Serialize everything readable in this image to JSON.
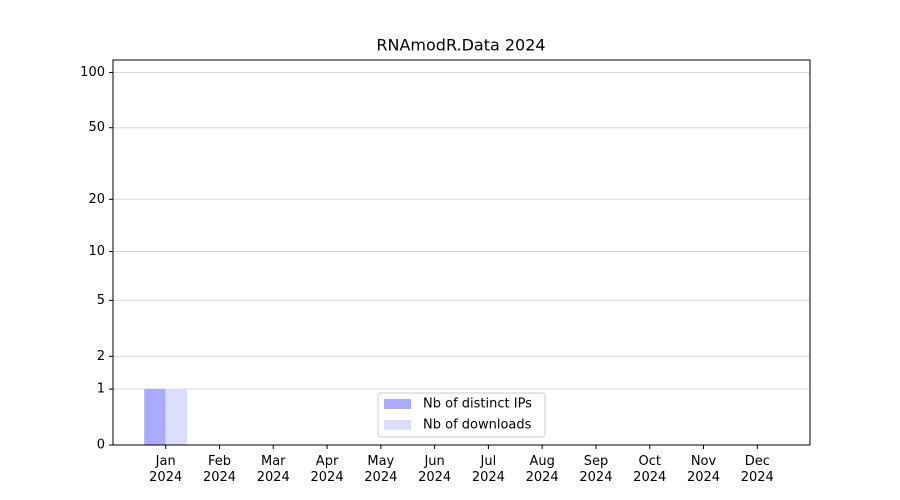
{
  "chart_data": {
    "type": "bar",
    "title": "RNAmodR.Data 2024",
    "categories": [
      "Jan 2024",
      "Feb 2024",
      "Mar 2024",
      "Apr 2024",
      "May 2024",
      "Jun 2024",
      "Jul 2024",
      "Aug 2024",
      "Sep 2024",
      "Oct 2024",
      "Nov 2024",
      "Dec 2024"
    ],
    "series": [
      {
        "name": "Nb of distinct IPs",
        "color": "#aaaaff",
        "values": [
          1,
          0,
          0,
          0,
          0,
          0,
          0,
          0,
          0,
          0,
          0,
          0
        ]
      },
      {
        "name": "Nb of downloads",
        "color": "#ddddff",
        "values": [
          1,
          0,
          0,
          0,
          0,
          0,
          0,
          0,
          0,
          0,
          0,
          0
        ]
      }
    ],
    "yscale": "log1p",
    "ylim": [
      0,
      117
    ],
    "yticks": [
      0,
      1,
      2,
      5,
      10,
      20,
      50,
      100
    ],
    "grid": true,
    "legend": "lower center"
  }
}
